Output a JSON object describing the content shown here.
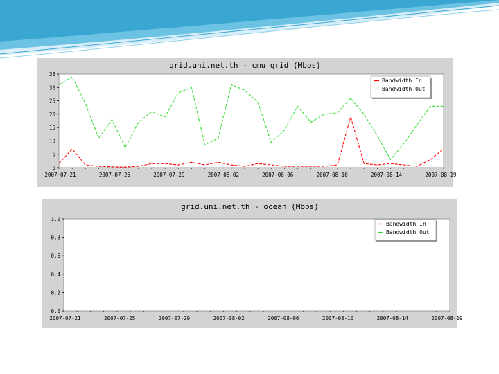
{
  "colors": {
    "bandwidth_in": "#ff0000",
    "bandwidth_out": "#33dd33",
    "panel_bg": "#d3d3d3",
    "plot_bg": "#ffffff",
    "header_wave": "#4fb4d8"
  },
  "chart_data": [
    {
      "type": "line",
      "title": "grid.uni.net.th - cmu grid (Mbps)",
      "xlabel": "",
      "ylabel": "",
      "ylim": [
        0,
        35
      ],
      "yticks": [
        "0",
        "5",
        "10",
        "15",
        "20",
        "25",
        "30",
        "35"
      ],
      "ytick_values": [
        0,
        5,
        10,
        15,
        20,
        25,
        30,
        35
      ],
      "xticks": [
        "2007-07-21",
        "2007-07-25",
        "2007-07-29",
        "2007-08-02",
        "2007-08-06",
        "2007-08-10",
        "2007-08-14",
        "2007-08-19"
      ],
      "legend_position": "top-right",
      "grid": false,
      "series": [
        {
          "name": "Bandwidth In",
          "values": [
            1.5,
            7,
            1,
            0.5,
            0.3,
            0.2,
            0.5,
            1.5,
            1.5,
            1,
            2,
            1,
            2,
            1,
            0.5,
            1.5,
            1,
            0.5,
            0.5,
            0.5,
            0.5,
            1,
            19,
            1.5,
            1,
            1.5,
            1,
            0.5,
            3,
            7
          ]
        },
        {
          "name": "Bandwidth Out",
          "values": [
            31,
            34,
            24,
            11,
            18,
            7.5,
            17,
            21,
            19,
            28,
            30,
            8.5,
            11,
            31,
            29,
            24.5,
            9.5,
            14,
            23,
            17,
            20,
            20.5,
            26,
            20,
            12,
            3,
            9,
            16,
            23,
            23
          ]
        }
      ]
    },
    {
      "type": "line",
      "title": "grid.uni.net.th - ocean (Mbps)",
      "xlabel": "",
      "ylabel": "",
      "ylim": [
        0,
        1
      ],
      "yticks": [
        "0.0",
        "0.2",
        "0.4",
        "0.6",
        "0.8",
        "1.0"
      ],
      "ytick_values": [
        0,
        0.2,
        0.4,
        0.6,
        0.8,
        1.0
      ],
      "xticks": [
        "2007-07-21",
        "2007-07-25",
        "2007-07-29",
        "2007-08-02",
        "2007-08-06",
        "2007-08-10",
        "2007-08-14",
        "2007-08-19"
      ],
      "legend_position": "top-right",
      "grid": false,
      "series": [
        {
          "name": "Bandwidth In",
          "values": []
        },
        {
          "name": "Bandwidth Out",
          "values": []
        }
      ]
    }
  ]
}
